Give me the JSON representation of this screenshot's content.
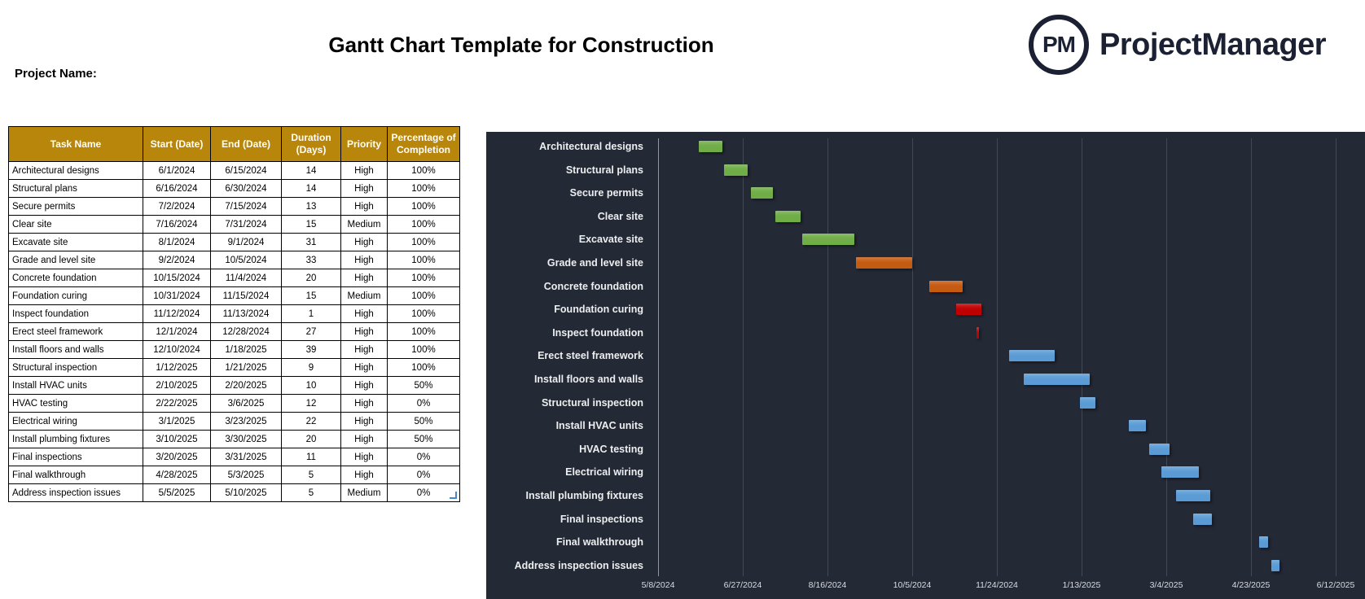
{
  "header": {
    "title": "Gantt Chart Template for Construction",
    "project_name_label": "Project Name:",
    "logo": {
      "monogram": "PM",
      "brand": "ProjectManager"
    }
  },
  "table": {
    "columns": [
      "Task Name",
      "Start (Date)",
      "End (Date)",
      "Duration (Days)",
      "Priority",
      "Percentage of Completion"
    ],
    "rows": [
      [
        "Architectural designs",
        "6/1/2024",
        "6/15/2024",
        "14",
        "High",
        "100%"
      ],
      [
        "Structural plans",
        "6/16/2024",
        "6/30/2024",
        "14",
        "High",
        "100%"
      ],
      [
        "Secure permits",
        "7/2/2024",
        "7/15/2024",
        "13",
        "High",
        "100%"
      ],
      [
        "Clear site",
        "7/16/2024",
        "7/31/2024",
        "15",
        "Medium",
        "100%"
      ],
      [
        "Excavate site",
        "8/1/2024",
        "9/1/2024",
        "31",
        "High",
        "100%"
      ],
      [
        "Grade and level site",
        "9/2/2024",
        "10/5/2024",
        "33",
        "High",
        "100%"
      ],
      [
        "Concrete foundation",
        "10/15/2024",
        "11/4/2024",
        "20",
        "High",
        "100%"
      ],
      [
        "Foundation curing",
        "10/31/2024",
        "11/15/2024",
        "15",
        "Medium",
        "100%"
      ],
      [
        "Inspect foundation",
        "11/12/2024",
        "11/13/2024",
        "1",
        "High",
        "100%"
      ],
      [
        "Erect steel framework",
        "12/1/2024",
        "12/28/2024",
        "27",
        "High",
        "100%"
      ],
      [
        "Install floors and walls",
        "12/10/2024",
        "1/18/2025",
        "39",
        "High",
        "100%"
      ],
      [
        "Structural inspection",
        "1/12/2025",
        "1/21/2025",
        "9",
        "High",
        "100%"
      ],
      [
        "Install HVAC units",
        "2/10/2025",
        "2/20/2025",
        "10",
        "High",
        "50%"
      ],
      [
        "HVAC testing",
        "2/22/2025",
        "3/6/2025",
        "12",
        "High",
        "0%"
      ],
      [
        "Electrical wiring",
        "3/1/2025",
        "3/23/2025",
        "22",
        "High",
        "50%"
      ],
      [
        "Install plumbing fixtures",
        "3/10/2025",
        "3/30/2025",
        "20",
        "High",
        "50%"
      ],
      [
        "Final inspections",
        "3/20/2025",
        "3/31/2025",
        "11",
        "High",
        "0%"
      ],
      [
        "Final walkthrough",
        "4/28/2025",
        "5/3/2025",
        "5",
        "High",
        "0%"
      ],
      [
        "Address inspection issues",
        "5/5/2025",
        "5/10/2025",
        "5",
        "Medium",
        "0%"
      ]
    ]
  },
  "chart_data": {
    "type": "bar",
    "variant": "horizontal-gantt",
    "background": "#242936",
    "legend_position": "none",
    "grid": "vertical-major",
    "axis": {
      "start": "5/8/2024",
      "end": "6/12/2025",
      "major_unit_days": 50,
      "ticks": [
        "5/8/2024",
        "6/27/2024",
        "8/16/2024",
        "10/5/2024",
        "11/24/2024",
        "1/13/2025",
        "3/4/2025",
        "4/23/2025",
        "6/12/2025"
      ]
    },
    "colors": {
      "green": "#70ad47",
      "orange": "#c55a11",
      "red": "#c00000",
      "blue": "#5b9bd5"
    },
    "tasks": [
      {
        "name": "Architectural designs",
        "start": "6/1/2024",
        "end": "6/15/2024",
        "duration_days": 14,
        "color": "green"
      },
      {
        "name": "Structural plans",
        "start": "6/16/2024",
        "end": "6/30/2024",
        "duration_days": 14,
        "color": "green"
      },
      {
        "name": "Secure permits",
        "start": "7/2/2024",
        "end": "7/15/2024",
        "duration_days": 13,
        "color": "green"
      },
      {
        "name": "Clear site",
        "start": "7/16/2024",
        "end": "7/31/2024",
        "duration_days": 15,
        "color": "green"
      },
      {
        "name": "Excavate site",
        "start": "8/1/2024",
        "end": "9/1/2024",
        "duration_days": 31,
        "color": "green"
      },
      {
        "name": "Grade and level site",
        "start": "9/2/2024",
        "end": "10/5/2024",
        "duration_days": 33,
        "color": "orange"
      },
      {
        "name": "Concrete foundation",
        "start": "10/15/2024",
        "end": "11/4/2024",
        "duration_days": 20,
        "color": "orange"
      },
      {
        "name": "Foundation curing",
        "start": "10/31/2024",
        "end": "11/15/2024",
        "duration_days": 15,
        "color": "red"
      },
      {
        "name": "Inspect foundation",
        "start": "11/12/2024",
        "end": "11/13/2024",
        "duration_days": 1,
        "color": "red"
      },
      {
        "name": "Erect steel framework",
        "start": "12/1/2024",
        "end": "12/28/2024",
        "duration_days": 27,
        "color": "blue"
      },
      {
        "name": "Install floors and walls",
        "start": "12/10/2024",
        "end": "1/18/2025",
        "duration_days": 39,
        "color": "blue"
      },
      {
        "name": "Structural inspection",
        "start": "1/12/2025",
        "end": "1/21/2025",
        "duration_days": 9,
        "color": "blue"
      },
      {
        "name": "Install HVAC units",
        "start": "2/10/2025",
        "end": "2/20/2025",
        "duration_days": 10,
        "color": "blue"
      },
      {
        "name": "HVAC testing",
        "start": "2/22/2025",
        "end": "3/6/2025",
        "duration_days": 12,
        "color": "blue"
      },
      {
        "name": "Electrical wiring",
        "start": "3/1/2025",
        "end": "3/23/2025",
        "duration_days": 22,
        "color": "blue"
      },
      {
        "name": "Install plumbing fixtures",
        "start": "3/10/2025",
        "end": "3/30/2025",
        "duration_days": 20,
        "color": "blue"
      },
      {
        "name": "Final inspections",
        "start": "3/20/2025",
        "end": "3/31/2025",
        "duration_days": 11,
        "color": "blue"
      },
      {
        "name": "Final walkthrough",
        "start": "4/28/2025",
        "end": "5/3/2025",
        "duration_days": 5,
        "color": "blue"
      },
      {
        "name": "Address inspection issues",
        "start": "5/5/2025",
        "end": "5/10/2025",
        "duration_days": 5,
        "color": "blue"
      }
    ]
  }
}
